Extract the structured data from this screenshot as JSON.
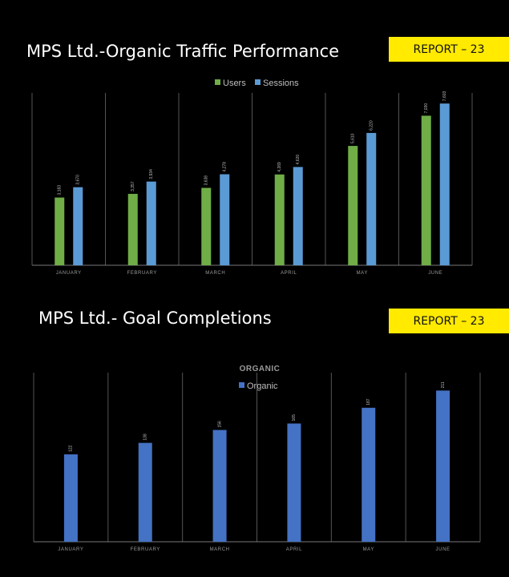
{
  "header1": {
    "title": "MPS Ltd.-Organic Traffic Performance",
    "badge": "REPORT – 23"
  },
  "header2": {
    "title": "MPS Ltd.- Goal Completions",
    "badge": "REPORT – 23"
  },
  "chart_data": [
    {
      "type": "bar",
      "title": "",
      "categories": [
        "JANUARY",
        "FEBRUARY",
        "MARCH",
        "APRIL",
        "MAY",
        "JUNE"
      ],
      "series": [
        {
          "name": "Users",
          "color": "#70ad47",
          "values": [
            3183,
            3357,
            3638,
            4269,
            5610,
            7030
          ]
        },
        {
          "name": "Sessions",
          "color": "#5b9bd5",
          "values": [
            3670,
            3934,
            4278,
            4620,
            6220,
            7603
          ]
        }
      ],
      "ylim": [
        0,
        8100
      ],
      "legend": "top-center",
      "grid": "vertical-separators"
    },
    {
      "type": "bar",
      "title": "ORGANIC",
      "categories": [
        "JANUARY",
        "FEBRUARY",
        "MARCH",
        "APRIL",
        "MAY",
        "JUNE"
      ],
      "series": [
        {
          "name": "Organic",
          "color": "#4472c4",
          "values": [
            122,
            138,
            156,
            165,
            187,
            211
          ]
        }
      ],
      "ylim": [
        0,
        236
      ],
      "legend": "top-center",
      "grid": "vertical-separators"
    }
  ]
}
